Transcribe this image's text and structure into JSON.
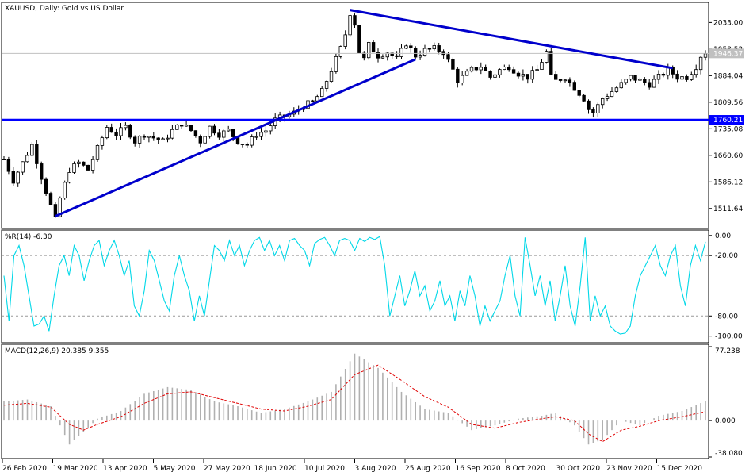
{
  "window": {
    "title": "XAUUSD, Daily:  Gold vs US Dollar"
  },
  "chart_data": [
    {
      "type": "candlestick",
      "title": "XAUUSD, Daily:  Gold vs US Dollar",
      "symbol": "XAUUSD",
      "timeframe": "Daily",
      "ylim": [
        1460,
        2085
      ],
      "y_ticks": [
        "2033.00",
        "1958.52",
        "1884.04",
        "1809.56",
        "1735.08",
        "1660.60",
        "1586.12",
        "1511.64"
      ],
      "current_price": "1946.37",
      "level_label": "1760.21",
      "level": 1760.21,
      "x_dates": [
        "26 Feb 2020",
        "19 Mar 2020",
        "13 Apr 2020",
        "5 May 2020",
        "27 May 2020",
        "18 Jun 2020",
        "10 Jul 2020",
        "3 Aug 2020",
        "25 Aug 2020",
        "16 Sep 2020",
        "8 Oct 2020",
        "30 Oct 2020",
        "23 Nov 2020",
        "15 Dec 2020"
      ],
      "price_path": [
        [
          0,
          1650
        ],
        [
          2,
          1590
        ],
        [
          4,
          1640
        ],
        [
          6,
          1690
        ],
        [
          8,
          1600
        ],
        [
          10,
          1520
        ],
        [
          11,
          1480
        ],
        [
          12,
          1540
        ],
        [
          14,
          1620
        ],
        [
          16,
          1640
        ],
        [
          18,
          1620
        ],
        [
          20,
          1680
        ],
        [
          22,
          1740
        ],
        [
          24,
          1720
        ],
        [
          26,
          1740
        ],
        [
          28,
          1700
        ],
        [
          30,
          1720
        ],
        [
          32,
          1710
        ],
        [
          34,
          1700
        ],
        [
          36,
          1730
        ],
        [
          38,
          1750
        ],
        [
          40,
          1730
        ],
        [
          42,
          1700
        ],
        [
          44,
          1740
        ],
        [
          46,
          1720
        ],
        [
          48,
          1730
        ],
        [
          50,
          1700
        ],
        [
          52,
          1690
        ],
        [
          54,
          1720
        ],
        [
          56,
          1730
        ],
        [
          58,
          1760
        ],
        [
          60,
          1770
        ],
        [
          62,
          1780
        ],
        [
          64,
          1800
        ],
        [
          66,
          1810
        ],
        [
          68,
          1840
        ],
        [
          70,
          1900
        ],
        [
          72,
          1960
        ],
        [
          73,
          2000
        ],
        [
          74,
          2060
        ],
        [
          75,
          2030
        ],
        [
          76,
          1950
        ],
        [
          77,
          1930
        ],
        [
          78,
          1970
        ],
        [
          80,
          1940
        ],
        [
          82,
          1950
        ],
        [
          84,
          1930
        ],
        [
          86,
          1975
        ],
        [
          88,
          1940
        ],
        [
          90,
          1955
        ],
        [
          92,
          1960
        ],
        [
          94,
          1950
        ],
        [
          96,
          1900
        ],
        [
          97,
          1870
        ],
        [
          98,
          1880
        ],
        [
          100,
          1900
        ],
        [
          102,
          1910
        ],
        [
          104,
          1880
        ],
        [
          106,
          1900
        ],
        [
          108,
          1910
        ],
        [
          110,
          1890
        ],
        [
          112,
          1880
        ],
        [
          114,
          1900
        ],
        [
          116,
          1950
        ],
        [
          117,
          1880
        ],
        [
          118,
          1870
        ],
        [
          120,
          1880
        ],
        [
          122,
          1850
        ],
        [
          124,
          1820
        ],
        [
          125,
          1790
        ],
        [
          126,
          1780
        ],
        [
          128,
          1820
        ],
        [
          130,
          1840
        ],
        [
          132,
          1860
        ],
        [
          134,
          1880
        ],
        [
          136,
          1870
        ],
        [
          138,
          1860
        ],
        [
          140,
          1880
        ],
        [
          142,
          1900
        ],
        [
          144,
          1880
        ],
        [
          146,
          1880
        ],
        [
          148,
          1910
        ],
        [
          149,
          1940
        ],
        [
          150,
          1950
        ]
      ],
      "trendlines": [
        {
          "from": [
            11,
            1490
          ],
          "to": [
            88,
            1930
          ]
        },
        {
          "from": [
            74,
            2068
          ],
          "to": [
            143,
            1905
          ]
        }
      ]
    },
    {
      "type": "line",
      "title": "%R(14) -6.30",
      "indicator": "Williams %R",
      "period": 14,
      "last_value": -6.3,
      "ylim": [
        -105,
        3
      ],
      "y_ticks": [
        "0.00",
        "-20.00",
        "-80.00",
        "-100.00"
      ],
      "levels": [
        -20,
        -80
      ],
      "values": [
        -40,
        -85,
        -20,
        -10,
        -30,
        -60,
        -90,
        -88,
        -80,
        -95,
        -60,
        -30,
        -20,
        -40,
        -10,
        -20,
        -45,
        -25,
        -10,
        -5,
        -30,
        -15,
        -5,
        -20,
        -40,
        -25,
        -70,
        -80,
        -55,
        -15,
        -25,
        -45,
        -65,
        -75,
        -40,
        -20,
        -40,
        -55,
        -85,
        -60,
        -80,
        -45,
        -10,
        -15,
        -25,
        -5,
        -20,
        -10,
        -30,
        -15,
        -5,
        -2,
        -15,
        -5,
        -20,
        -10,
        -25,
        -5,
        -3,
        -10,
        -15,
        -30,
        -8,
        -4,
        -2,
        -10,
        -20,
        -5,
        -3,
        -5,
        -15,
        -3,
        -6,
        -2,
        -4,
        -1,
        -30,
        -80,
        -60,
        -40,
        -70,
        -55,
        -35,
        -60,
        -50,
        -75,
        -65,
        -45,
        -70,
        -60,
        -85,
        -55,
        -70,
        -40,
        -60,
        -90,
        -70,
        -85,
        -75,
        -65,
        -40,
        -20,
        -60,
        -80,
        -2,
        -30,
        -60,
        -40,
        -70,
        -45,
        -85,
        -60,
        -30,
        -70,
        -90,
        -50,
        -2,
        -85,
        -60,
        -80,
        -70,
        -90,
        -95,
        -98,
        -97,
        -90,
        -60,
        -40,
        -30,
        -20,
        -10,
        -30,
        -40,
        -20,
        -10,
        -50,
        -70,
        -30,
        -10,
        -25,
        -6.3
      ]
    },
    {
      "type": "histogram_line",
      "title": "MACD(12,26,9) 20.385 9.355",
      "indicator": "MACD",
      "params": [
        12,
        26,
        9
      ],
      "macd_last": 20.385,
      "signal_last": 9.355,
      "ylim": [
        -38.08,
        77.238
      ],
      "y_ticks": [
        "77.238",
        "0.000",
        "-38.080"
      ],
      "macd": [
        [
          0,
          20
        ],
        [
          5,
          22
        ],
        [
          10,
          15
        ],
        [
          14,
          -25
        ],
        [
          17,
          -12
        ],
        [
          20,
          2
        ],
        [
          25,
          10
        ],
        [
          30,
          28
        ],
        [
          35,
          35
        ],
        [
          40,
          32
        ],
        [
          45,
          20
        ],
        [
          50,
          15
        ],
        [
          55,
          8
        ],
        [
          60,
          12
        ],
        [
          65,
          20
        ],
        [
          70,
          30
        ],
        [
          75,
          70
        ],
        [
          80,
          55
        ],
        [
          85,
          30
        ],
        [
          90,
          12
        ],
        [
          95,
          8
        ],
        [
          100,
          -10
        ],
        [
          105,
          -5
        ],
        [
          110,
          2
        ],
        [
          115,
          5
        ],
        [
          118,
          8
        ],
        [
          122,
          -5
        ],
        [
          125,
          -25
        ],
        [
          128,
          -20
        ],
        [
          132,
          0
        ],
        [
          136,
          -5
        ],
        [
          140,
          5
        ],
        [
          145,
          10
        ],
        [
          150,
          20.385
        ]
      ],
      "signal": [
        [
          0,
          16
        ],
        [
          5,
          18
        ],
        [
          10,
          14
        ],
        [
          14,
          -4
        ],
        [
          17,
          -10
        ],
        [
          20,
          -4
        ],
        [
          25,
          4
        ],
        [
          30,
          18
        ],
        [
          35,
          28
        ],
        [
          40,
          30
        ],
        [
          45,
          24
        ],
        [
          50,
          18
        ],
        [
          55,
          12
        ],
        [
          60,
          10
        ],
        [
          65,
          15
        ],
        [
          70,
          22
        ],
        [
          75,
          48
        ],
        [
          80,
          58
        ],
        [
          85,
          42
        ],
        [
          90,
          25
        ],
        [
          95,
          14
        ],
        [
          100,
          -4
        ],
        [
          105,
          -8
        ],
        [
          110,
          -2
        ],
        [
          115,
          2
        ],
        [
          118,
          4
        ],
        [
          122,
          0
        ],
        [
          125,
          -14
        ],
        [
          128,
          -22
        ],
        [
          132,
          -10
        ],
        [
          136,
          -6
        ],
        [
          140,
          0
        ],
        [
          145,
          4
        ],
        [
          150,
          9.355
        ]
      ]
    }
  ]
}
